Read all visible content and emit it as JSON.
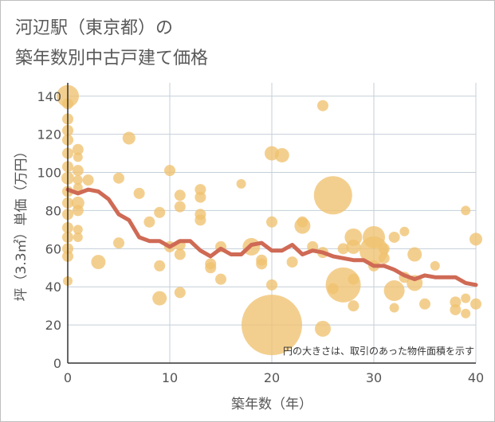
{
  "title_line1": "河辺駅（東京都）の",
  "title_line2": "築年数別中古戸建て価格",
  "chart_data": {
    "type": "scatter",
    "title": "河辺駅（東京都）の 築年数別中古戸建て価格",
    "xlabel": "築年数（年）",
    "ylabel": "坪（3.3㎡）単価（万円）",
    "xlim": [
      0,
      40
    ],
    "ylim": [
      0,
      147
    ],
    "x_ticks": [
      "0",
      "10",
      "20",
      "30",
      "40"
    ],
    "y_ticks": [
      "0",
      "20",
      "40",
      "60",
      "80",
      "100",
      "120",
      "140"
    ],
    "grid": true,
    "note": "円の大きさは、取引のあった物件面積を示す",
    "colors": {
      "bubble": "#f0c26f",
      "trend": "#cf6a55",
      "grid": "#c5cfd9",
      "axis": "#333333"
    },
    "bubbles": [
      {
        "x": 0,
        "y": 140,
        "s": 14
      },
      {
        "x": 0,
        "y": 136,
        "s": 7
      },
      {
        "x": 0,
        "y": 128,
        "s": 7
      },
      {
        "x": 0,
        "y": 122,
        "s": 7
      },
      {
        "x": 0,
        "y": 117,
        "s": 7
      },
      {
        "x": 0,
        "y": 110,
        "s": 7
      },
      {
        "x": 0,
        "y": 103,
        "s": 7
      },
      {
        "x": 0,
        "y": 97,
        "s": 8
      },
      {
        "x": 0,
        "y": 90,
        "s": 7
      },
      {
        "x": 0,
        "y": 84,
        "s": 7
      },
      {
        "x": 0,
        "y": 78,
        "s": 7
      },
      {
        "x": 0,
        "y": 71,
        "s": 7
      },
      {
        "x": 0,
        "y": 66,
        "s": 7
      },
      {
        "x": 0,
        "y": 60,
        "s": 7
      },
      {
        "x": 0,
        "y": 56,
        "s": 7
      },
      {
        "x": 0,
        "y": 43,
        "s": 6
      },
      {
        "x": 1,
        "y": 112,
        "s": 7
      },
      {
        "x": 1,
        "y": 108,
        "s": 6
      },
      {
        "x": 1,
        "y": 101,
        "s": 7
      },
      {
        "x": 1,
        "y": 96,
        "s": 6
      },
      {
        "x": 1,
        "y": 92,
        "s": 6
      },
      {
        "x": 1,
        "y": 84,
        "s": 8
      },
      {
        "x": 1,
        "y": 80,
        "s": 7
      },
      {
        "x": 1,
        "y": 70,
        "s": 6
      },
      {
        "x": 1,
        "y": 66,
        "s": 6
      },
      {
        "x": 2,
        "y": 96,
        "s": 7
      },
      {
        "x": 3,
        "y": 53,
        "s": 9
      },
      {
        "x": 5,
        "y": 97,
        "s": 7
      },
      {
        "x": 5,
        "y": 63,
        "s": 7
      },
      {
        "x": 6,
        "y": 118,
        "s": 8
      },
      {
        "x": 7,
        "y": 89,
        "s": 7
      },
      {
        "x": 8,
        "y": 74,
        "s": 7
      },
      {
        "x": 9,
        "y": 79,
        "s": 7
      },
      {
        "x": 9,
        "y": 51,
        "s": 7
      },
      {
        "x": 9,
        "y": 34,
        "s": 9
      },
      {
        "x": 10,
        "y": 101,
        "s": 7
      },
      {
        "x": 10,
        "y": 61,
        "s": 7
      },
      {
        "x": 11,
        "y": 88,
        "s": 7
      },
      {
        "x": 11,
        "y": 82,
        "s": 7
      },
      {
        "x": 11,
        "y": 62,
        "s": 7
      },
      {
        "x": 11,
        "y": 57,
        "s": 7
      },
      {
        "x": 11,
        "y": 37,
        "s": 7
      },
      {
        "x": 13,
        "y": 91,
        "s": 7
      },
      {
        "x": 13,
        "y": 87,
        "s": 7
      },
      {
        "x": 13,
        "y": 78,
        "s": 7
      },
      {
        "x": 13,
        "y": 75,
        "s": 7
      },
      {
        "x": 14,
        "y": 52,
        "s": 7
      },
      {
        "x": 14,
        "y": 50,
        "s": 7
      },
      {
        "x": 15,
        "y": 61,
        "s": 7
      },
      {
        "x": 15,
        "y": 44,
        "s": 7
      },
      {
        "x": 17,
        "y": 94,
        "s": 6
      },
      {
        "x": 18,
        "y": 61,
        "s": 11
      },
      {
        "x": 19,
        "y": 54,
        "s": 7
      },
      {
        "x": 19,
        "y": 52,
        "s": 7
      },
      {
        "x": 20,
        "y": 110,
        "s": 9
      },
      {
        "x": 20,
        "y": 74,
        "s": 7
      },
      {
        "x": 20,
        "y": 41,
        "s": 7
      },
      {
        "x": 20,
        "y": 20,
        "s": 38
      },
      {
        "x": 21,
        "y": 109,
        "s": 9
      },
      {
        "x": 22,
        "y": 53,
        "s": 7
      },
      {
        "x": 23,
        "y": 74,
        "s": 7
      },
      {
        "x": 23,
        "y": 72,
        "s": 10
      },
      {
        "x": 24,
        "y": 61,
        "s": 7
      },
      {
        "x": 25,
        "y": 135,
        "s": 7
      },
      {
        "x": 25,
        "y": 58,
        "s": 7
      },
      {
        "x": 25,
        "y": 18,
        "s": 10
      },
      {
        "x": 26,
        "y": 88,
        "s": 24
      },
      {
        "x": 26,
        "y": 39,
        "s": 7
      },
      {
        "x": 27,
        "y": 60,
        "s": 7
      },
      {
        "x": 27,
        "y": 41,
        "s": 22
      },
      {
        "x": 28,
        "y": 66,
        "s": 11
      },
      {
        "x": 28,
        "y": 61,
        "s": 9
      },
      {
        "x": 28,
        "y": 44,
        "s": 7
      },
      {
        "x": 28,
        "y": 30,
        "s": 7
      },
      {
        "x": 30,
        "y": 66,
        "s": 14
      },
      {
        "x": 30,
        "y": 59,
        "s": 18
      },
      {
        "x": 30,
        "y": 51,
        "s": 7
      },
      {
        "x": 31,
        "y": 60,
        "s": 7
      },
      {
        "x": 31,
        "y": 55,
        "s": 7
      },
      {
        "x": 32,
        "y": 66,
        "s": 7
      },
      {
        "x": 32,
        "y": 38,
        "s": 13
      },
      {
        "x": 32,
        "y": 29,
        "s": 6
      },
      {
        "x": 33,
        "y": 69,
        "s": 6
      },
      {
        "x": 33,
        "y": 45,
        "s": 7
      },
      {
        "x": 34,
        "y": 57,
        "s": 9
      },
      {
        "x": 34,
        "y": 42,
        "s": 10
      },
      {
        "x": 35,
        "y": 31,
        "s": 7
      },
      {
        "x": 36,
        "y": 51,
        "s": 6
      },
      {
        "x": 38,
        "y": 32,
        "s": 7
      },
      {
        "x": 38,
        "y": 28,
        "s": 7
      },
      {
        "x": 39,
        "y": 80,
        "s": 6
      },
      {
        "x": 39,
        "y": 34,
        "s": 6
      },
      {
        "x": 39,
        "y": 26,
        "s": 6
      },
      {
        "x": 40,
        "y": 65,
        "s": 8
      },
      {
        "x": 40,
        "y": 31,
        "s": 7
      }
    ],
    "trend": {
      "x": [
        0,
        1,
        2,
        3,
        4,
        5,
        6,
        7,
        8,
        9,
        10,
        11,
        12,
        13,
        14,
        15,
        16,
        17,
        18,
        19,
        20,
        21,
        22,
        23,
        24,
        25,
        26,
        27,
        28,
        29,
        30,
        31,
        32,
        33,
        34,
        35,
        36,
        37,
        38,
        39,
        40
      ],
      "y": [
        91,
        89,
        91,
        90,
        86,
        78,
        75,
        66,
        64,
        64,
        61,
        64,
        64,
        59,
        56,
        60,
        57,
        57,
        62,
        63,
        59,
        59,
        62,
        57,
        59,
        58,
        56,
        55,
        54,
        54,
        51,
        51,
        49,
        46,
        44,
        46,
        45,
        45,
        45,
        42,
        41
      ]
    }
  }
}
